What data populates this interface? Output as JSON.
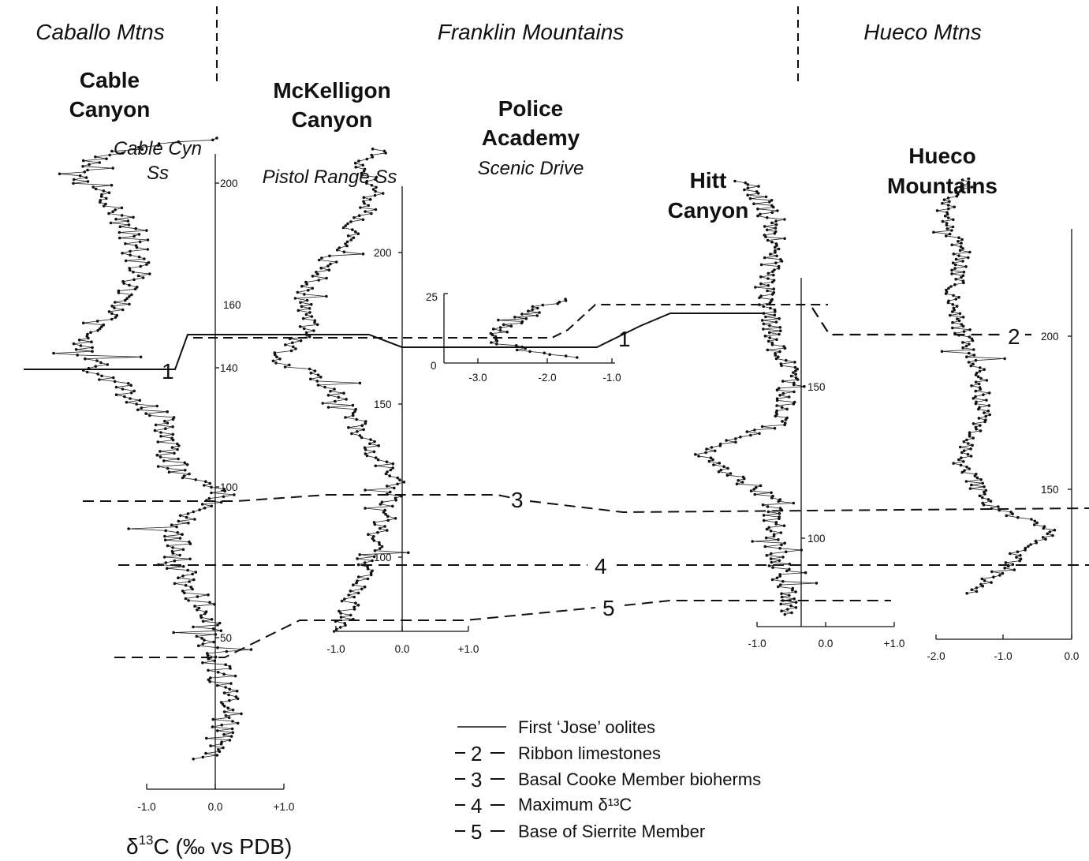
{
  "regions": [
    {
      "name": "Caballo Mtns"
    },
    {
      "name": "Franklin Mountains"
    },
    {
      "name": "Hueco Mtns"
    }
  ],
  "sections": {
    "cable": {
      "line1": "Cable",
      "line2": "Canyon",
      "formation1": "Cable Cyn",
      "formation2": "Ss"
    },
    "mck": {
      "line1": "McKelligon",
      "line2": "Canyon",
      "formation": "Pistol Range Ss"
    },
    "police": {
      "line1": "Police",
      "line2": "Academy",
      "line3": "Scenic Drive"
    },
    "hitt": {
      "line1": "Hitt",
      "line2": "Canyon"
    },
    "hueco": {
      "line1": "Hueco",
      "line2": "Mountains"
    }
  },
  "correlation_labels": {
    "one": "1",
    "two": "2",
    "three": "3",
    "four": "4",
    "five": "5"
  },
  "legend": [
    {
      "num": "",
      "label": "First ‘Jose’ oolites",
      "style": "solid"
    },
    {
      "num": "2",
      "label": "Ribbon limestones",
      "style": "dashed"
    },
    {
      "num": "3",
      "label": "Basal Cooke Member bioherms",
      "style": "dashed"
    },
    {
      "num": "4",
      "label": "Maximum δ¹³C",
      "style": "dashed"
    },
    {
      "num": "5",
      "label": "Base of Sierrite Member",
      "style": "dashed"
    }
  ],
  "axis_title": {
    "prefix": "δ",
    "sup": "13",
    "suffix": "C (‰ vs PDB)"
  },
  "chart_data": [
    {
      "type": "scatter",
      "name": "Cable Canyon",
      "x_ticks": [
        "-1.0",
        "0.0",
        "+1.0"
      ],
      "y_ticks": [
        "50",
        "100",
        "140",
        "200"
      ],
      "xlim": [
        -3.0,
        1.0
      ],
      "ylim": [
        0,
        210
      ],
      "y_trend": [
        [
          0,
          -0.1
        ],
        [
          15,
          0.2
        ],
        [
          35,
          0.0
        ],
        [
          50,
          -0.2
        ],
        [
          68,
          -0.6
        ],
        [
          80,
          -0.5
        ],
        [
          88,
          0.1
        ],
        [
          95,
          -0.6
        ],
        [
          112,
          -0.7
        ],
        [
          130,
          -1.8
        ],
        [
          140,
          -2.0
        ],
        [
          150,
          -1.4
        ],
        [
          160,
          -1.1
        ],
        [
          175,
          -1.2
        ],
        [
          185,
          -1.6
        ],
        [
          195,
          -2.1
        ],
        [
          203,
          -1.2
        ],
        [
          206,
          0.0
        ]
      ]
    },
    {
      "type": "scatter",
      "name": "McKelligon Canyon",
      "x_ticks": [
        "-1.0",
        "0.0",
        "+1.0"
      ],
      "y_ticks": [
        "100",
        "150",
        "160",
        "200"
      ],
      "xlim": [
        -1.5,
        1.0
      ],
      "ylim": [
        60,
        220
      ],
      "y_trend": [
        [
          60,
          -0.9
        ],
        [
          80,
          -0.6
        ],
        [
          100,
          -0.2
        ],
        [
          110,
          -0.1
        ],
        [
          125,
          -0.6
        ],
        [
          135,
          -0.8
        ],
        [
          145,
          -1.3
        ],
        [
          150,
          -1.9
        ],
        [
          160,
          -1.4
        ],
        [
          170,
          -1.5
        ],
        [
          180,
          -1.2
        ],
        [
          195,
          -0.7
        ],
        [
          205,
          -0.4
        ],
        [
          215,
          -0.6
        ],
        [
          220,
          -0.3
        ]
      ]
    },
    {
      "type": "scatter",
      "name": "Police Academy",
      "x_ticks": [
        "-3.0",
        "-2.0",
        "-1.0"
      ],
      "y_ticks": [
        "0",
        "25"
      ],
      "xlim": [
        -3.5,
        -1.0
      ],
      "ylim": [
        0,
        25
      ],
      "y_trend": [
        [
          2,
          -1.5
        ],
        [
          5,
          -2.4
        ],
        [
          9,
          -2.9
        ],
        [
          13,
          -2.6
        ],
        [
          16,
          -2.3
        ],
        [
          20,
          -2.1
        ],
        [
          23,
          -1.8
        ]
      ]
    },
    {
      "type": "scatter",
      "name": "Hitt Canyon",
      "x_ticks": [
        "-1.0",
        "0.0",
        "+1.0"
      ],
      "y_ticks": [
        "100",
        "150"
      ],
      "xlim": [
        -1.0,
        1.0
      ],
      "ylim": [
        60,
        210
      ],
      "y_trend": [
        [
          62,
          -0.5
        ],
        [
          80,
          -0.7
        ],
        [
          100,
          -0.8
        ],
        [
          115,
          -1.8
        ],
        [
          125,
          -0.7
        ],
        [
          140,
          -0.5
        ],
        [
          155,
          -0.8
        ],
        [
          170,
          -0.9
        ],
        [
          185,
          -0.7
        ],
        [
          198,
          -0.9
        ],
        [
          205,
          -1.2
        ]
      ]
    },
    {
      "type": "scatter",
      "name": "Hueco Mountains",
      "x_ticks": [
        "-2.0",
        "-1.0",
        "0.0"
      ],
      "y_ticks": [
        "150",
        "200"
      ],
      "xlim": [
        -2.0,
        0.0
      ],
      "ylim": [
        105,
        240
      ],
      "y_trend": [
        [
          105,
          -1.5
        ],
        [
          115,
          -0.9
        ],
        [
          125,
          -0.3
        ],
        [
          135,
          -1.3
        ],
        [
          150,
          -1.6
        ],
        [
          165,
          -1.3
        ],
        [
          180,
          -1.4
        ],
        [
          200,
          -1.8
        ],
        [
          215,
          -1.6
        ],
        [
          230,
          -1.9
        ],
        [
          240,
          -1.5
        ]
      ]
    }
  ]
}
